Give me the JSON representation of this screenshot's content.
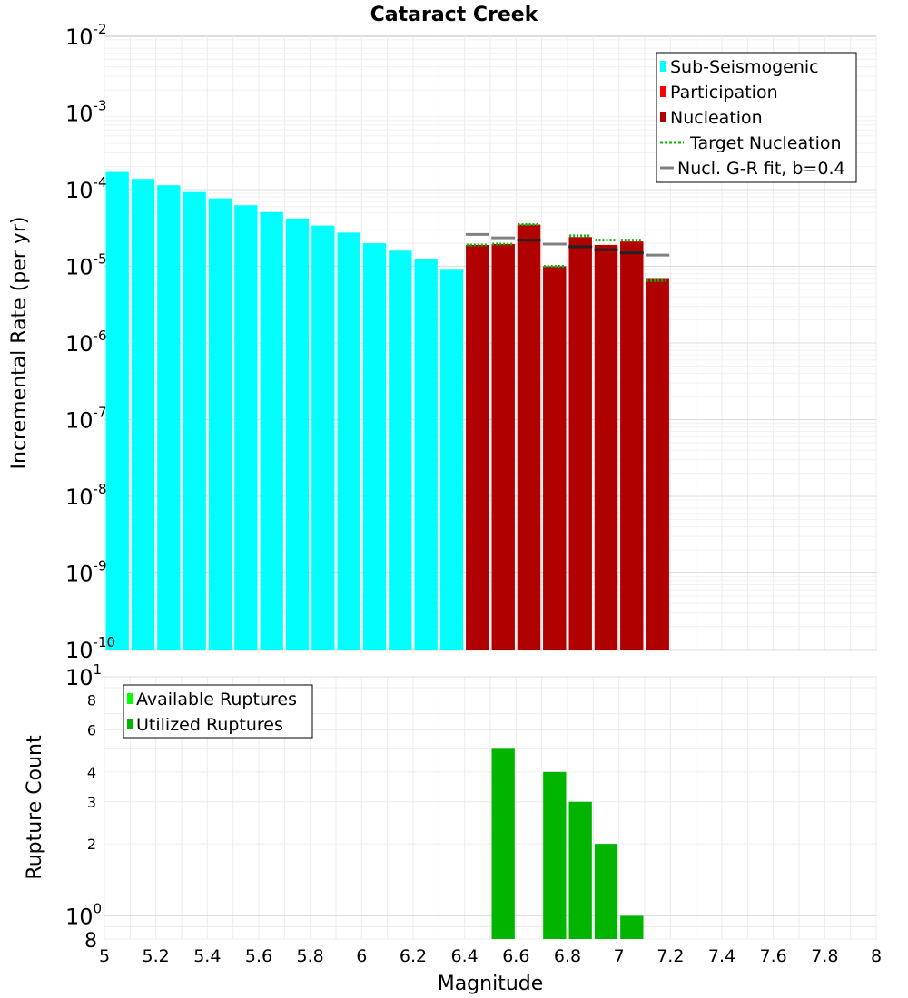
{
  "chart_data": [
    {
      "type": "bar",
      "title": "Cataract Creek",
      "ylabel": "Incremental Rate (per yr)",
      "xlabel": "",
      "xlim": [
        5,
        8
      ],
      "ylim": [
        1e-10,
        0.01
      ],
      "yscale": "log",
      "legend_position": "top-right",
      "y_ticks": [
        {
          "exp": -2,
          "base": "10",
          "sup": "-2"
        },
        {
          "exp": -3,
          "base": "10",
          "sup": "-3"
        },
        {
          "exp": -4,
          "base": "10",
          "sup": "-4"
        },
        {
          "exp": -5,
          "base": "10",
          "sup": "-5"
        },
        {
          "exp": -6,
          "base": "10",
          "sup": "-6"
        },
        {
          "exp": -7,
          "base": "10",
          "sup": "-7"
        },
        {
          "exp": -8,
          "base": "10",
          "sup": "-8"
        },
        {
          "exp": -9,
          "base": "10",
          "sup": "-9"
        },
        {
          "exp": -10,
          "base": "10",
          "sup": "-10"
        }
      ],
      "legend": [
        {
          "label": "Sub-Seismogenic",
          "kind": "box",
          "color": "#00ffff"
        },
        {
          "label": "Participation",
          "kind": "box",
          "color": "#ff0000"
        },
        {
          "label": "Nucleation",
          "kind": "box",
          "color": "#b00000"
        },
        {
          "label": "Target Nucleation",
          "kind": "dotted",
          "color": "#00bb00"
        },
        {
          "label": "Nucl. G-R fit, b=0.4",
          "kind": "line",
          "color": "#808080"
        }
      ],
      "series": [
        {
          "name": "Sub-Seismogenic",
          "color": "#00ffff",
          "x": [
            5.05,
            5.15,
            5.25,
            5.35,
            5.45,
            5.55,
            5.65,
            5.75,
            5.85,
            5.95,
            6.05,
            6.15,
            6.25,
            6.35
          ],
          "values": [
            0.00017,
            0.000138,
            0.000114,
            9.3e-05,
            7.7e-05,
            6.25e-05,
            5.1e-05,
            4.2e-05,
            3.4e-05,
            2.75e-05,
            2e-05,
            1.6e-05,
            1.25e-05,
            9e-06
          ]
        },
        {
          "name": "Participation",
          "color": "#ff0000",
          "x": [
            6.45,
            6.55,
            6.65,
            6.75,
            6.85,
            6.95,
            7.05,
            7.15
          ],
          "values": [
            1.9e-05,
            1.95e-05,
            3.5e-05,
            1e-05,
            2.4e-05,
            1.9e-05,
            2.1e-05,
            7e-06
          ]
        },
        {
          "name": "Nucleation",
          "color": "#b00000",
          "x": [
            6.45,
            6.55,
            6.65,
            6.75,
            6.85,
            6.95,
            7.05,
            7.15
          ],
          "values": [
            1.9e-05,
            1.95e-05,
            3.5e-05,
            1e-05,
            2.4e-05,
            1.9e-05,
            2.1e-05,
            7e-06
          ]
        },
        {
          "name": "Target Nucleation",
          "color": "#00bb00",
          "x": [
            6.45,
            6.55,
            6.65,
            6.75,
            6.85,
            6.95,
            7.05,
            7.15
          ],
          "values": [
            1.9e-05,
            1.95e-05,
            3.5e-05,
            1e-05,
            2.5e-05,
            2.2e-05,
            2.2e-05,
            6.5e-06
          ]
        },
        {
          "name": "Nucl. G-R fit, b=0.4",
          "color": "#808080",
          "x": [
            6.45,
            6.55,
            6.65,
            6.75,
            6.85,
            6.95,
            7.05,
            7.15
          ],
          "values": [
            2.6e-05,
            2.35e-05,
            2.2e-05,
            1.95e-05,
            1.8e-05,
            1.65e-05,
            1.5e-05,
            1.4e-05
          ]
        }
      ]
    },
    {
      "type": "bar",
      "title": "",
      "ylabel": "Rupture Count",
      "xlabel": "Magnitude",
      "xlim": [
        5,
        8
      ],
      "ylim": [
        0.8,
        10
      ],
      "yscale": "log",
      "legend_position": "top-left",
      "x_ticks": [
        "5",
        "5.2",
        "5.4",
        "5.6",
        "5.8",
        "6",
        "6.2",
        "6.4",
        "6.6",
        "6.8",
        "7",
        "7.2",
        "7.4",
        "7.6",
        "7.8",
        "8"
      ],
      "y_ticks": [
        {
          "value": 10,
          "base": "10",
          "sup": "1"
        },
        {
          "value": 8,
          "label": "8"
        },
        {
          "value": 6,
          "label": "6"
        },
        {
          "value": 4,
          "label": "4"
        },
        {
          "value": 3,
          "label": "3"
        },
        {
          "value": 2,
          "label": "2"
        },
        {
          "value": 1,
          "base": "10",
          "sup": "0"
        },
        {
          "value": 0.8,
          "label": "8"
        }
      ],
      "legend": [
        {
          "label": "Available Ruptures",
          "kind": "box",
          "color": "#00ff00"
        },
        {
          "label": "Utilized Ruptures",
          "kind": "box",
          "color": "#00b400"
        }
      ],
      "series": [
        {
          "name": "Utilized Ruptures",
          "color": "#00b400",
          "x": [
            6.55,
            6.75,
            6.85,
            6.95,
            7.05
          ],
          "values": [
            5,
            4,
            3,
            2,
            1
          ]
        }
      ]
    }
  ]
}
